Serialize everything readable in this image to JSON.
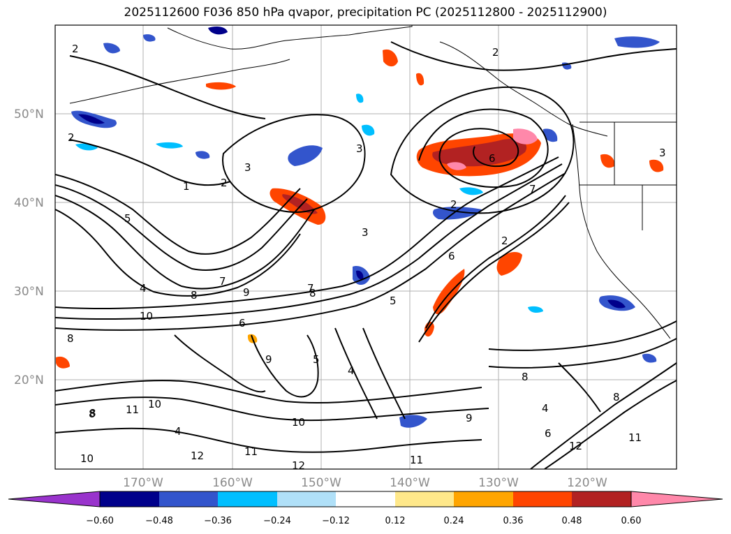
{
  "title": "2025112600 F036 850 hPa qvapor, precipitation PC (2025112800 - 2025112900)",
  "map": {
    "lat_labels": [
      "50°N",
      "40°N",
      "30°N",
      "20°N"
    ],
    "lon_labels": [
      "170°W",
      "160°W",
      "150°W",
      "140°W",
      "130°W",
      "120°W"
    ],
    "contour_labels": [
      "2",
      "2",
      "2",
      "1",
      "3",
      "2",
      "3",
      "3",
      "2",
      "6",
      "7",
      "2",
      "5",
      "7",
      "6",
      "4",
      "9",
      "7",
      "8",
      "10",
      "3",
      "8",
      "8",
      "5",
      "5",
      "9",
      "6",
      "4",
      "10",
      "11",
      "8",
      "4",
      "8",
      "12",
      "11",
      "10",
      "8",
      "12",
      "11",
      "10",
      "9",
      "12",
      "11",
      "4",
      "6",
      "8"
    ]
  },
  "colorbar": {
    "ticks": [
      "−0.60",
      "−0.48",
      "−0.36",
      "−0.24",
      "−0.12",
      "0.12",
      "0.24",
      "0.36",
      "0.48",
      "0.60"
    ],
    "colors": [
      "#9933cc",
      "#00008b",
      "#3355cc",
      "#00bfff",
      "#b0e0f8",
      "#ffffff",
      "#ffe88a",
      "#ffa500",
      "#ff4500",
      "#b22222",
      "#ff88aa"
    ]
  }
}
